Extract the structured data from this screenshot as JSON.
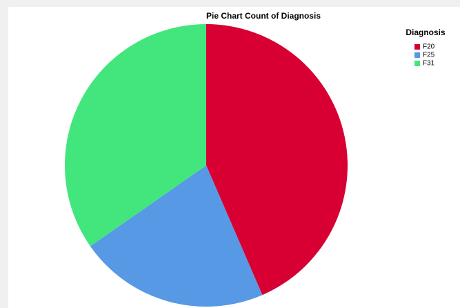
{
  "chart_data": {
    "type": "pie",
    "title": "Pie Chart Count of Diagnosis",
    "legend_title": "Diagnosis",
    "categories": [
      "F20",
      "F25",
      "F31"
    ],
    "values": [
      43.5,
      21.8,
      34.7
    ],
    "colors": [
      "#d80032",
      "#5899e6",
      "#42e67c"
    ],
    "legend": "top-right"
  }
}
